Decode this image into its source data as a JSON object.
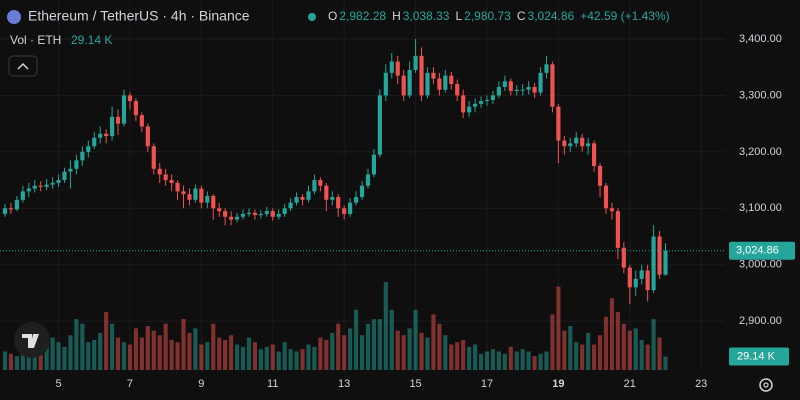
{
  "header": {
    "ticker": "Ethereum / TetherUS · 4h · Binance",
    "ohlc": [
      {
        "key": "O",
        "value": "2,982.28"
      },
      {
        "key": "H",
        "value": "3,038.33"
      },
      {
        "key": "L",
        "value": "2,980.73"
      },
      {
        "key": "C",
        "value": "3,024.86"
      }
    ],
    "change": "+42.59 (+1.43%)",
    "vol_label": "Vol · ETH",
    "vol_value": "29.14 K"
  },
  "chart_data": {
    "type": "candlestick",
    "up_color": "#26a69a",
    "down_color": "#ef5350",
    "grid": true,
    "xlim": [
      -0.84,
      121
    ],
    "xticks": [
      {
        "value": 9,
        "label": "5"
      },
      {
        "value": 21,
        "label": "7"
      },
      {
        "value": 33,
        "label": "9"
      },
      {
        "value": 45,
        "label": "11"
      },
      {
        "value": 57,
        "label": "13"
      },
      {
        "value": 69,
        "label": "15"
      },
      {
        "value": 81,
        "label": "17"
      },
      {
        "value": 93,
        "label": "19",
        "bold": true
      },
      {
        "value": 105,
        "label": "21"
      },
      {
        "value": 117,
        "label": "23"
      }
    ],
    "ylim": [
      2810,
      3469
    ],
    "yticks": [
      {
        "value": 2900,
        "label": "2,900.00"
      },
      {
        "value": 3000,
        "label": "3,000.00"
      },
      {
        "value": 3100,
        "label": "3,100.00"
      },
      {
        "value": 3200,
        "label": "3,200.00"
      },
      {
        "value": 3300,
        "label": "3,300.00"
      },
      {
        "value": 3400,
        "label": "3,400.00"
      }
    ],
    "open": [
      3090,
      3100,
      3098,
      3115,
      3130,
      3135,
      3140,
      3138,
      3142,
      3145,
      3150,
      3165,
      3170,
      3185,
      3200,
      3210,
      3225,
      3232,
      3228,
      3262,
      3250,
      3300,
      3290,
      3265,
      3245,
      3210,
      3170,
      3160,
      3150,
      3145,
      3130,
      3125,
      3115,
      3135,
      3110,
      3122,
      3100,
      3095,
      3085,
      3080,
      3085,
      3090,
      3092,
      3088,
      3090,
      3095,
      3085,
      3090,
      3100,
      3110,
      3120,
      3115,
      3130,
      3150,
      3140,
      3115,
      3120,
      3100,
      3090,
      3110,
      3120,
      3140,
      3160,
      3195,
      3300,
      3340,
      3360,
      3335,
      3300,
      3345,
      3370,
      3300,
      3340,
      3330,
      3310,
      3335,
      3320,
      3300,
      3270,
      3280,
      3285,
      3290,
      3292,
      3300,
      3315,
      3325,
      3308,
      3310,
      3310,
      3315,
      3305,
      3340,
      3355,
      3280,
      3220,
      3210,
      3215,
      3225,
      3210,
      3215,
      3175,
      3140,
      3100,
      3095,
      3030,
      2995,
      2960,
      2975,
      2990,
      2955,
      3050,
      2982.28
    ],
    "high": [
      3108,
      3110,
      3122,
      3140,
      3145,
      3150,
      3148,
      3152,
      3155,
      3160,
      3172,
      3185,
      3195,
      3210,
      3220,
      3235,
      3245,
      3240,
      3280,
      3275,
      3310,
      3305,
      3295,
      3270,
      3250,
      3215,
      3180,
      3170,
      3160,
      3150,
      3140,
      3135,
      3142,
      3140,
      3130,
      3125,
      3110,
      3100,
      3095,
      3092,
      3098,
      3100,
      3098,
      3097,
      3102,
      3100,
      3098,
      3108,
      3118,
      3128,
      3125,
      3140,
      3160,
      3155,
      3145,
      3130,
      3125,
      3105,
      3118,
      3130,
      3148,
      3170,
      3205,
      3310,
      3355,
      3375,
      3370,
      3345,
      3360,
      3400,
      3385,
      3350,
      3350,
      3340,
      3345,
      3342,
      3328,
      3310,
      3290,
      3295,
      3298,
      3300,
      3308,
      3325,
      3335,
      3330,
      3318,
      3320,
      3325,
      3322,
      3350,
      3370,
      3360,
      3285,
      3228,
      3225,
      3235,
      3232,
      3225,
      3220,
      3180,
      3145,
      3110,
      3100,
      3040,
      3000,
      2990,
      3000,
      3000,
      3070,
      3060,
      3038.33
    ],
    "low": [
      3085,
      3090,
      3095,
      3110,
      3120,
      3128,
      3130,
      3132,
      3135,
      3138,
      3145,
      3135,
      3160,
      3175,
      3190,
      3205,
      3215,
      3215,
      3220,
      3230,
      3245,
      3275,
      3255,
      3235,
      3200,
      3160,
      3145,
      3140,
      3130,
      3115,
      3100,
      3105,
      3110,
      3100,
      3100,
      3080,
      3085,
      3070,
      3070,
      3075,
      3080,
      3085,
      3080,
      3082,
      3085,
      3078,
      3080,
      3085,
      3095,
      3105,
      3105,
      3110,
      3125,
      3130,
      3095,
      3105,
      3085,
      3080,
      3085,
      3105,
      3115,
      3135,
      3155,
      3190,
      3290,
      3330,
      3320,
      3290,
      3295,
      3340,
      3290,
      3295,
      3320,
      3300,
      3305,
      3310,
      3290,
      3260,
      3262,
      3270,
      3278,
      3282,
      3285,
      3295,
      3308,
      3300,
      3300,
      3300,
      3302,
      3295,
      3300,
      3330,
      3270,
      3180,
      3195,
      3200,
      3208,
      3200,
      3195,
      3165,
      3120,
      3090,
      3080,
      3010,
      2985,
      2930,
      2945,
      2965,
      2935,
      2950,
      2975,
      2980.73
    ],
    "close": [
      3100,
      3098,
      3115,
      3130,
      3135,
      3140,
      3138,
      3142,
      3145,
      3150,
      3165,
      3170,
      3185,
      3200,
      3210,
      3225,
      3232,
      3228,
      3262,
      3250,
      3300,
      3290,
      3265,
      3245,
      3210,
      3170,
      3160,
      3150,
      3145,
      3130,
      3125,
      3115,
      3135,
      3110,
      3122,
      3100,
      3095,
      3085,
      3080,
      3085,
      3090,
      3092,
      3088,
      3090,
      3095,
      3085,
      3090,
      3100,
      3110,
      3120,
      3115,
      3130,
      3150,
      3140,
      3115,
      3120,
      3100,
      3090,
      3110,
      3120,
      3140,
      3160,
      3195,
      3300,
      3340,
      3360,
      3335,
      3300,
      3345,
      3370,
      3300,
      3340,
      3330,
      3310,
      3335,
      3320,
      3300,
      3270,
      3280,
      3285,
      3290,
      3292,
      3300,
      3315,
      3325,
      3308,
      3310,
      3310,
      3315,
      3305,
      3340,
      3355,
      3280,
      3220,
      3210,
      3215,
      3225,
      3210,
      3215,
      3175,
      3140,
      3100,
      3095,
      3030,
      2995,
      2960,
      2975,
      2990,
      2955,
      3050,
      2982.28,
      3024.86
    ],
    "volume": [
      40,
      35,
      30,
      45,
      60,
      50,
      45,
      55,
      70,
      60,
      50,
      75,
      110,
      100,
      60,
      65,
      80,
      125,
      100,
      70,
      60,
      55,
      90,
      70,
      95,
      85,
      75,
      100,
      65,
      60,
      110,
      80,
      90,
      55,
      60,
      100,
      70,
      65,
      75,
      55,
      50,
      70,
      60,
      45,
      50,
      55,
      40,
      60,
      45,
      40,
      45,
      55,
      50,
      70,
      65,
      80,
      100,
      75,
      90,
      130,
      75,
      100,
      110,
      110,
      190,
      130,
      85,
      75,
      90,
      130,
      80,
      70,
      120,
      100,
      75,
      55,
      60,
      65,
      50,
      55,
      35,
      40,
      45,
      40,
      35,
      50,
      40,
      45,
      40,
      30,
      35,
      40,
      120,
      180,
      85,
      95,
      60,
      55,
      80,
      55,
      75,
      115,
      155,
      125,
      100,
      85,
      90,
      65,
      55,
      110,
      70,
      29.14
    ],
    "last_price_label": "3,024.86",
    "last_volume_label": "29.14 K"
  }
}
